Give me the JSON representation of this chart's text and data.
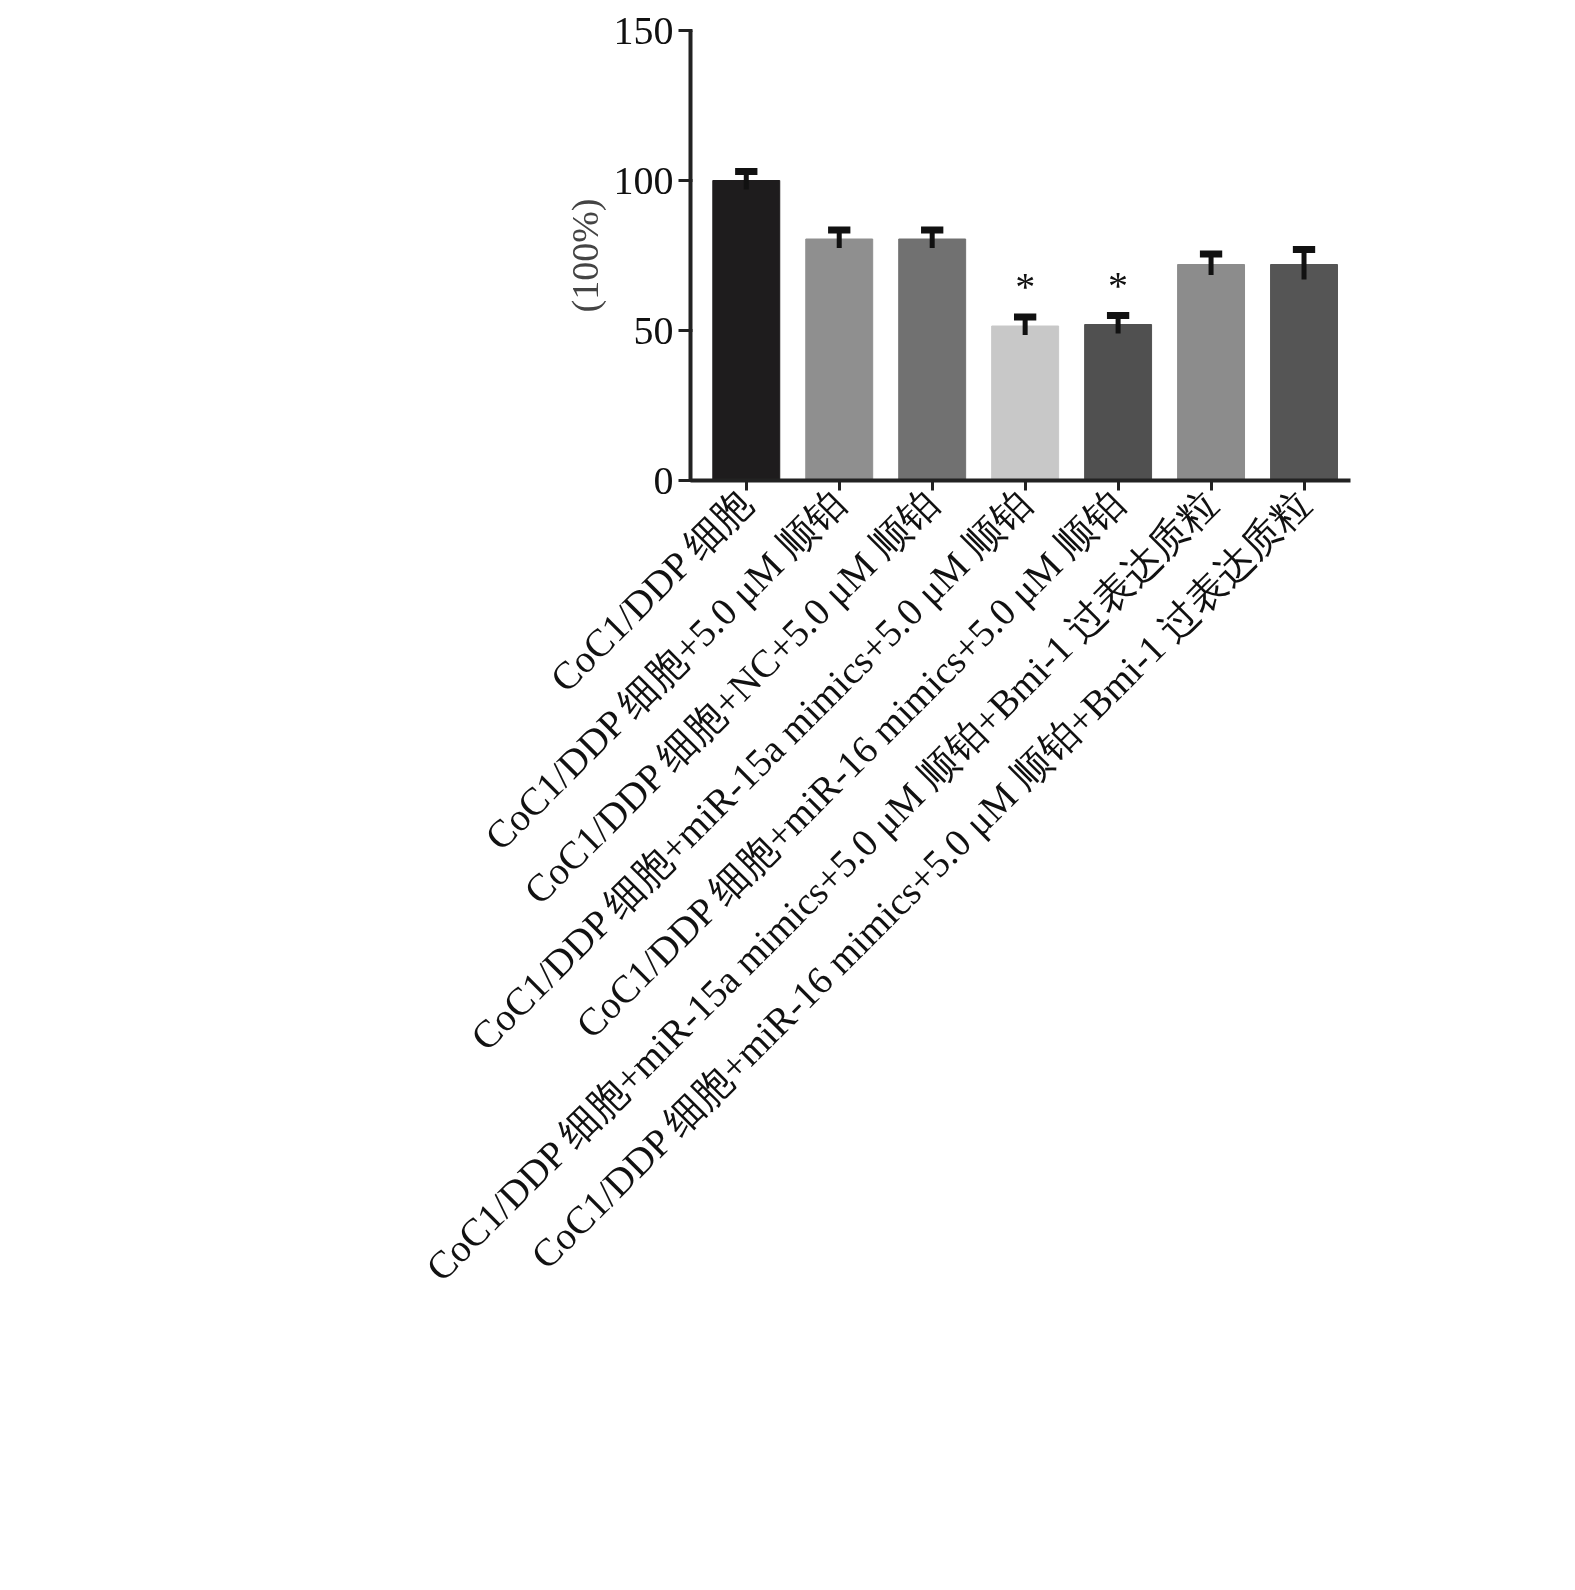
{
  "chart_data": {
    "type": "bar",
    "ylabel": "(100%)",
    "categories": [
      "CoC1/DDP 细胞",
      "CoC1/DDP 细胞+5.0 μM 顺铂",
      "CoC1/DDP 细胞+NC+5.0 μM 顺铂",
      "CoC1/DDP 细胞+miR-15a mimics+5.0 μM 顺铂",
      "CoC1/DDP 细胞+miR-16 mimics+5.0 μM 顺铂",
      "CoC1/DDP 细胞+miR-15a mimics+5.0 μM 顺铂+Bmi-1 过表达质粒",
      "CoC1/DDP 细胞+miR-16 mimics+5.0 μM 顺铂+Bmi-1 过表达质粒"
    ],
    "values": [
      100,
      80.5,
      80.5,
      51.5,
      52,
      72,
      72
    ],
    "errors": [
      3,
      3,
      3,
      3,
      3,
      3.5,
      5
    ],
    "colors": [
      "#1e1c1d",
      "#8f8f8f",
      "#717171",
      "#c8c8c8",
      "#505050",
      "#8c8c8c",
      "#555555"
    ],
    "ylim": [
      0,
      150
    ],
    "yticks": [
      0,
      50,
      100,
      150
    ],
    "grid": false,
    "value_labels": [
      null,
      null,
      null,
      "*",
      "*",
      null,
      null
    ]
  }
}
